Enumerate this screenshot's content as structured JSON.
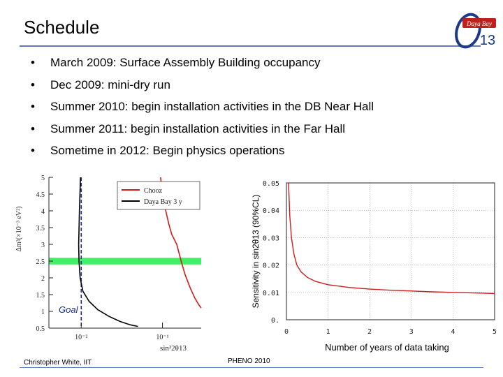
{
  "slide": {
    "title": "Schedule",
    "bullets": [
      "March 2009: Surface Assembly Building occupancy",
      "Dec 2009: mini-dry run",
      "Summer 2010: begin installation activities in the DB Near Hall",
      "Summer 2011: begin installation activities in the Far Hall",
      "Sometime in 2012: Begin physics operations"
    ],
    "bullet_glyph": "•",
    "logo_text": "Daya Bay",
    "logo_number": "13",
    "footer_author": "Christopher White, IIT",
    "footer_event": "PHENO 2010",
    "colors": {
      "accent": "#5a7ab8",
      "logo_red": "#c0201b"
    }
  },
  "chart_data": [
    {
      "type": "line",
      "xscale": "log",
      "xlabel": "sin²2θ13",
      "ylabel": "Δm²(×10⁻³ eV²)",
      "xlim": [
        0.004,
        0.3
      ],
      "ylim": [
        0.5,
        5
      ],
      "xticks": [
        "10⁻²",
        "10⁻¹"
      ],
      "yticks": [
        "0.5",
        "1",
        "1.5",
        "2",
        "2.5",
        "3",
        "3.5",
        "4",
        "4.5",
        "5"
      ],
      "legend": {
        "position": "top-right",
        "entries": [
          "Chooz",
          "Daya Bay 3 y"
        ]
      },
      "annotations": [
        "Goal"
      ],
      "band": {
        "y_range": [
          2.4,
          2.6
        ],
        "color": "#44ee66"
      },
      "vline": {
        "x": 0.01,
        "color": "#1a2a9a"
      },
      "series": [
        {
          "name": "Chooz",
          "color": "#d21a1a",
          "points": [
            [
              0.095,
              5.0
            ],
            [
              0.1,
              4.5
            ],
            [
              0.11,
              4.0
            ],
            [
              0.12,
              3.6
            ],
            [
              0.13,
              3.3
            ],
            [
              0.15,
              3.0
            ],
            [
              0.17,
              2.5
            ],
            [
              0.19,
              2.1
            ],
            [
              0.22,
              1.7
            ],
            [
              0.25,
              1.4
            ],
            [
              0.28,
              1.2
            ],
            [
              0.3,
              1.1
            ]
          ]
        },
        {
          "name": "Daya Bay 3 y",
          "color": "#000000",
          "points": [
            [
              0.0098,
              5.0
            ],
            [
              0.0095,
              4.0
            ],
            [
              0.0093,
              3.0
            ],
            [
              0.0094,
              2.5
            ],
            [
              0.0097,
              2.0
            ],
            [
              0.0105,
              1.6
            ],
            [
              0.0125,
              1.3
            ],
            [
              0.016,
              1.05
            ],
            [
              0.022,
              0.85
            ],
            [
              0.03,
              0.7
            ],
            [
              0.04,
              0.6
            ],
            [
              0.05,
              0.55
            ]
          ]
        }
      ]
    },
    {
      "type": "line",
      "xlabel": "Number of years of data taking",
      "ylabel": "Sensitivity in sin2θ13 (90%CL)",
      "xlim": [
        0,
        5
      ],
      "ylim": [
        0,
        0.05
      ],
      "xticks": [
        "0",
        "1",
        "2",
        "3",
        "4",
        "5"
      ],
      "yticks": [
        "0.",
        "0.01",
        "0.02",
        "0.03",
        "0.04",
        "0.05"
      ],
      "grid": true,
      "series": [
        {
          "color": "#d21a1a",
          "x": [
            0.05,
            0.08,
            0.12,
            0.18,
            0.25,
            0.35,
            0.5,
            0.7,
            1.0,
            1.5,
            2.0,
            2.5,
            3.0,
            3.5,
            4.0,
            4.5,
            5.0
          ],
          "y": [
            0.05,
            0.038,
            0.03,
            0.024,
            0.02,
            0.0175,
            0.0155,
            0.014,
            0.0128,
            0.0118,
            0.0112,
            0.0108,
            0.0105,
            0.0102,
            0.01,
            0.0098,
            0.0096
          ]
        }
      ]
    }
  ]
}
